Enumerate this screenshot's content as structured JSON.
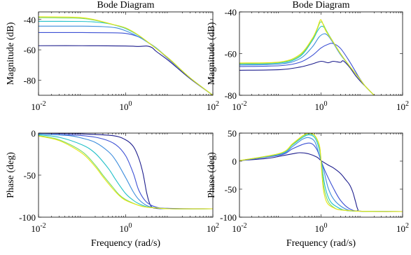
{
  "chart_data": [
    {
      "type": "line",
      "title": "Bode Diagram",
      "ylabel": "Magnitude (dB)",
      "xlabel": "",
      "x_scale": "log",
      "xlim": [
        0.01,
        100
      ],
      "ylim": [
        -90,
        -35
      ],
      "xticks": [
        0.01,
        1,
        100
      ],
      "yticks": [
        -80,
        -60,
        -40
      ],
      "xtick_labels": [
        "10^-2",
        "10^0",
        "10^2"
      ],
      "ytick_labels": [
        "-80",
        "-60",
        "-40"
      ],
      "grid": false,
      "series": [
        {
          "color": "#1c1c8c",
          "x": [
            0.01,
            0.1,
            1,
            2,
            3,
            4,
            5,
            10,
            30,
            100
          ],
          "y": [
            -57.3,
            -57.3,
            -57.5,
            -57.8,
            -57.5,
            -58.5,
            -61,
            -67.5,
            -79,
            -90
          ]
        },
        {
          "color": "#3c50d4",
          "x": [
            0.01,
            0.1,
            0.5,
            1,
            2,
            3,
            5,
            10,
            30,
            100
          ],
          "y": [
            -48.6,
            -48.6,
            -48.8,
            -49.2,
            -51.5,
            -54.5,
            -59,
            -66.5,
            -78.5,
            -90
          ]
        },
        {
          "color": "#3c8cdc",
          "x": [
            0.01,
            0.1,
            0.3,
            0.6,
            1,
            2,
            3,
            5,
            10,
            30,
            100
          ],
          "y": [
            -44.4,
            -44.4,
            -44.7,
            -45.5,
            -47.5,
            -51.5,
            -54.5,
            -58.7,
            -66.2,
            -78.5,
            -90
          ]
        },
        {
          "color": "#20c0c8",
          "x": [
            0.01,
            0.1,
            0.2,
            0.4,
            0.7,
            1,
            2,
            4,
            10,
            30,
            100
          ],
          "y": [
            -41.2,
            -41.3,
            -41.7,
            -42.7,
            -44.5,
            -46,
            -50.7,
            -57,
            -66,
            -78.5,
            -90
          ]
        },
        {
          "color": "#78dc64",
          "x": [
            0.01,
            0.05,
            0.1,
            0.2,
            0.5,
            1,
            2,
            4,
            10,
            30,
            100
          ],
          "y": [
            -38.8,
            -39,
            -39.3,
            -40.5,
            -43.3,
            -45.6,
            -50.5,
            -57,
            -66,
            -78.5,
            -90
          ]
        },
        {
          "color": "#e6e614",
          "x": [
            0.01,
            0.05,
            0.1,
            0.2,
            0.5,
            1,
            2,
            4,
            10,
            30,
            100
          ],
          "y": [
            -38.2,
            -38.4,
            -38.8,
            -40.2,
            -43.2,
            -45.6,
            -50.5,
            -57,
            -66,
            -78.5,
            -90
          ]
        }
      ]
    },
    {
      "type": "line",
      "title": "Bode Diagram",
      "ylabel": "Magnitude (dB)",
      "xlabel": "",
      "x_scale": "log",
      "xlim": [
        0.01,
        100
      ],
      "ylim": [
        -80,
        -40
      ],
      "xticks": [
        0.01,
        1,
        100
      ],
      "yticks": [
        -80,
        -60,
        -40
      ],
      "xtick_labels": [
        "10^-2",
        "10^0",
        "10^2"
      ],
      "ytick_labels": [
        "-80",
        "-60",
        "-40"
      ],
      "grid": false,
      "series": [
        {
          "color": "#1c1c8c",
          "x": [
            0.01,
            0.1,
            0.3,
            0.6,
            1,
            1.5,
            2,
            3,
            3.5,
            5,
            7,
            10,
            15,
            20
          ],
          "y": [
            -68,
            -67.7,
            -66.5,
            -65,
            -63.7,
            -64.4,
            -63.7,
            -64.2,
            -63.5,
            -66.5,
            -70.5,
            -74,
            -77.5,
            -80
          ]
        },
        {
          "color": "#3c50d4",
          "x": [
            0.01,
            0.1,
            0.3,
            0.6,
            1,
            1.5,
            2,
            3,
            5,
            8,
            12,
            20
          ],
          "y": [
            -66.2,
            -65.8,
            -64.2,
            -61,
            -57.3,
            -55.5,
            -55.2,
            -57.5,
            -63.8,
            -70.5,
            -75.5,
            -80
          ]
        },
        {
          "color": "#3c8cdc",
          "x": [
            0.01,
            0.1,
            0.3,
            0.6,
            0.9,
            1.2,
            1.5,
            2,
            3,
            5,
            8,
            12,
            20
          ],
          "y": [
            -65.5,
            -65,
            -62.5,
            -57,
            -52,
            -50.5,
            -51.5,
            -55,
            -60.5,
            -66,
            -71,
            -75.5,
            -80
          ]
        },
        {
          "color": "#20c0c8",
          "x": [
            0.01,
            0.1,
            0.3,
            0.6,
            0.8,
            1,
            1.2,
            1.5,
            2,
            3,
            5,
            8,
            12,
            20
          ],
          "y": [
            -65,
            -64.5,
            -61.5,
            -54,
            -49.5,
            -47,
            -47.5,
            -50.5,
            -54.5,
            -60,
            -66,
            -71,
            -75.5,
            -80
          ]
        },
        {
          "color": "#78dc64",
          "x": [
            0.01,
            0.1,
            0.3,
            0.6,
            0.8,
            0.95,
            1.1,
            1.4,
            2,
            3,
            5,
            8,
            12,
            20
          ],
          "y": [
            -64.8,
            -64.2,
            -61,
            -53.5,
            -48.5,
            -45,
            -45.5,
            -49.5,
            -54.5,
            -60,
            -66,
            -71,
            -75.5,
            -80
          ]
        },
        {
          "color": "#e6e614",
          "x": [
            0.01,
            0.1,
            0.3,
            0.6,
            0.8,
            0.95,
            1.05,
            1.3,
            2,
            3,
            5,
            8,
            12,
            20
          ],
          "y": [
            -64.5,
            -64,
            -60.5,
            -53,
            -48,
            -44,
            -44.5,
            -49,
            -54.5,
            -60,
            -66,
            -71,
            -75.5,
            -80
          ]
        }
      ]
    },
    {
      "type": "line",
      "title": "",
      "ylabel": "Phase (deg)",
      "xlabel": "Frequency (rad/s)",
      "x_scale": "log",
      "xlim": [
        0.01,
        100
      ],
      "ylim": [
        -100,
        0
      ],
      "xticks": [
        0.01,
        1,
        100
      ],
      "yticks": [
        -100,
        -50,
        0
      ],
      "xtick_labels": [
        "10^-2",
        "10^0",
        "10^2"
      ],
      "ytick_labels": [
        "-100",
        "-50",
        "0"
      ],
      "grid": false,
      "series": [
        {
          "color": "#1c1c8c",
          "x": [
            0.01,
            0.1,
            0.5,
            1,
            1.5,
            2,
            2.5,
            3,
            3.5,
            4,
            5,
            10,
            100
          ],
          "y": [
            0,
            -1,
            -3,
            -8,
            -16,
            -30,
            -48,
            -70,
            -83,
            -88,
            -89.5,
            -90,
            -90
          ]
        },
        {
          "color": "#3c50d4",
          "x": [
            0.01,
            0.1,
            0.3,
            0.6,
            1,
            1.5,
            2,
            3,
            5,
            10,
            100
          ],
          "y": [
            -1,
            -3,
            -7,
            -14,
            -27,
            -48,
            -68,
            -82,
            -88,
            -89.5,
            -90
          ]
        },
        {
          "color": "#3c8cdc",
          "x": [
            0.01,
            0.05,
            0.1,
            0.2,
            0.4,
            0.6,
            1,
            1.5,
            2,
            3,
            5,
            10,
            100
          ],
          "y": [
            -1,
            -3,
            -6,
            -11,
            -22,
            -33,
            -53,
            -70,
            -79,
            -86,
            -89,
            -90,
            -90
          ]
        },
        {
          "color": "#20c0c8",
          "x": [
            0.01,
            0.03,
            0.1,
            0.2,
            0.4,
            0.6,
            1,
            1.5,
            2,
            3,
            5,
            10,
            100
          ],
          "y": [
            -2,
            -5,
            -14,
            -24,
            -42,
            -56,
            -72,
            -80,
            -84,
            -87.5,
            -89,
            -90,
            -90
          ]
        },
        {
          "color": "#78dc64",
          "x": [
            0.01,
            0.03,
            0.1,
            0.2,
            0.3,
            0.5,
            0.7,
            1,
            2,
            3,
            5,
            10,
            100
          ],
          "y": [
            -3,
            -8,
            -22,
            -38,
            -50,
            -64,
            -73,
            -79,
            -86,
            -88,
            -89,
            -90,
            -90
          ]
        },
        {
          "color": "#e6e614",
          "x": [
            0.01,
            0.03,
            0.1,
            0.2,
            0.3,
            0.5,
            0.7,
            1,
            2,
            3,
            5,
            10,
            100
          ],
          "y": [
            -3.5,
            -9,
            -24,
            -40,
            -52,
            -66,
            -74,
            -80,
            -86,
            -88,
            -89,
            -90,
            -90
          ]
        }
      ]
    },
    {
      "type": "line",
      "title": "",
      "ylabel": "Phase (deg)",
      "xlabel": "Frequency (rad/s)",
      "x_scale": "log",
      "xlim": [
        0.01,
        100
      ],
      "ylim": [
        -100,
        50
      ],
      "xticks": [
        0.01,
        1,
        100
      ],
      "yticks": [
        -100,
        -50,
        0,
        50
      ],
      "xtick_labels": [
        "10^-2",
        "10^0",
        "10^2"
      ],
      "ytick_labels": [
        "-100",
        "-50",
        "0",
        "50"
      ],
      "grid": false,
      "series": [
        {
          "color": "#1c1c8c",
          "x": [
            0.01,
            0.05,
            0.1,
            0.2,
            0.3,
            0.5,
            0.8,
            1,
            1.5,
            2,
            3,
            4,
            5,
            6,
            7,
            8,
            10,
            100
          ],
          "y": [
            1,
            5,
            9,
            13,
            15,
            13,
            7,
            1,
            -7,
            -12,
            -22,
            -33,
            -42,
            -55,
            -72,
            -86,
            -89.5,
            -90
          ]
        },
        {
          "color": "#3c50d4",
          "x": [
            0.01,
            0.1,
            0.2,
            0.4,
            0.6,
            0.8,
            1,
            1.3,
            2,
            3,
            5,
            10,
            100
          ],
          "y": [
            1,
            11,
            22,
            31,
            31,
            20,
            1,
            -20,
            -48,
            -70,
            -85,
            -89.5,
            -90
          ]
        },
        {
          "color": "#3c8cdc",
          "x": [
            0.01,
            0.1,
            0.2,
            0.35,
            0.5,
            0.7,
            0.9,
            1,
            1.2,
            1.5,
            2,
            3,
            5,
            10,
            100
          ],
          "y": [
            1,
            12,
            26,
            39,
            42,
            35,
            12,
            1,
            -20,
            -48,
            -67,
            -80,
            -88,
            -89.5,
            -90
          ]
        },
        {
          "color": "#20c0c8",
          "x": [
            0.01,
            0.1,
            0.2,
            0.35,
            0.5,
            0.7,
            0.9,
            1,
            1.1,
            1.3,
            1.7,
            2.5,
            4,
            10,
            100
          ],
          "y": [
            1,
            13,
            29,
            42,
            47,
            42,
            22,
            1,
            -20,
            -50,
            -72,
            -82,
            -88,
            -89.5,
            -90
          ]
        },
        {
          "color": "#78dc64",
          "x": [
            0.01,
            0.1,
            0.2,
            0.35,
            0.5,
            0.7,
            0.9,
            0.97,
            1,
            1.05,
            1.2,
            1.5,
            2,
            3,
            10,
            100
          ],
          "y": [
            1,
            14,
            30,
            44,
            49,
            45,
            28,
            12,
            1,
            -15,
            -50,
            -72,
            -82,
            -87,
            -89.5,
            -90
          ]
        },
        {
          "color": "#e6e614",
          "x": [
            0.01,
            0.1,
            0.2,
            0.35,
            0.5,
            0.7,
            0.9,
            0.97,
            1,
            1.03,
            1.15,
            1.4,
            2,
            3,
            10,
            100
          ],
          "y": [
            1,
            14,
            31,
            45,
            50,
            46,
            30,
            14,
            1,
            -15,
            -52,
            -74,
            -83,
            -87,
            -89.5,
            -90
          ]
        }
      ]
    }
  ]
}
